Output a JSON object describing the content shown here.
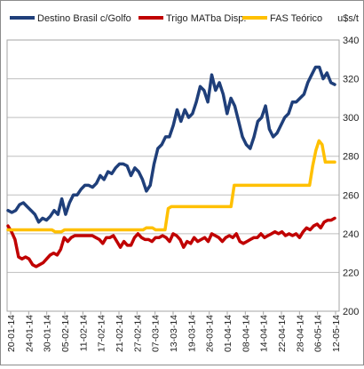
{
  "chart_data": {
    "type": "line",
    "unit_label": "u$s/t",
    "xlabel": "",
    "ylabel": "",
    "ylim": [
      200,
      340
    ],
    "yticks": [
      200,
      220,
      240,
      260,
      280,
      300,
      320,
      340
    ],
    "grid": true,
    "legend_position": "top",
    "x_tick_labels": [
      "20-01-14",
      "24-01-14",
      "30-01-14",
      "05-02-14",
      "11-02-14",
      "17-02-14",
      "21-02-14",
      "27-02-14",
      "07-03-14",
      "13-03-14",
      "19-03-14",
      "26-03-14",
      "01-04-14",
      "08-04-14",
      "14-04-14",
      "22-04-14",
      "28-04-14",
      "06-05-14",
      "12-05-14"
    ],
    "series": [
      {
        "name": "Destino Brasil c/Golfo",
        "color": "#1f3f7a",
        "values": [
          252,
          251,
          252,
          255,
          256,
          254,
          252,
          250,
          246,
          248,
          247,
          249,
          252,
          250,
          258,
          250,
          256,
          260,
          260,
          263,
          265,
          265,
          264,
          266,
          270,
          268,
          272,
          271,
          274,
          276,
          276,
          275,
          270,
          274,
          272,
          268,
          262,
          265,
          276,
          284,
          286,
          290,
          290,
          296,
          304,
          298,
          304,
          300,
          302,
          308,
          316,
          314,
          308,
          322,
          314,
          318,
          312,
          302,
          310,
          306,
          298,
          290,
          286,
          284,
          290,
          298,
          300,
          306,
          294,
          290,
          292,
          296,
          300,
          302,
          308,
          308,
          310,
          312,
          318,
          322,
          326,
          326,
          320,
          323,
          318,
          317
        ]
      },
      {
        "name": "Trigo MATba Disp.",
        "color": "#c00000",
        "values": [
          244,
          241,
          237,
          228,
          227,
          228,
          227,
          224,
          223,
          224,
          225,
          227,
          229,
          230,
          229,
          232,
          238,
          236,
          238,
          239,
          239,
          239,
          239,
          239,
          239,
          238,
          237,
          235,
          238,
          238,
          239,
          236,
          233,
          236,
          234,
          234,
          238,
          240,
          238,
          237,
          237,
          236,
          238,
          238,
          239,
          238,
          236,
          240,
          239,
          237,
          233,
          236,
          235,
          238,
          236,
          237,
          238,
          236,
          240,
          239,
          238,
          236,
          238,
          239,
          238,
          240,
          236,
          235,
          236,
          237,
          238,
          238,
          240,
          238,
          239,
          240,
          241,
          240,
          241,
          239,
          240,
          239,
          240,
          238,
          241,
          243,
          242,
          244,
          245,
          243,
          246,
          247,
          247,
          248
        ]
      },
      {
        "name": "FAS Teórico",
        "color": "#ffc000",
        "values": [
          242,
          242,
          242,
          242,
          242,
          242,
          242,
          242,
          242,
          242,
          242,
          242,
          242,
          242,
          242,
          241,
          241,
          241,
          242,
          242,
          242,
          242,
          242,
          242,
          242,
          242,
          242,
          242,
          242,
          242,
          242,
          242,
          242,
          242,
          242,
          242,
          242,
          242,
          242,
          242,
          242,
          242,
          242,
          242,
          243,
          243,
          243,
          242,
          242,
          242,
          242,
          253,
          254,
          254,
          254,
          254,
          254,
          254,
          254,
          254,
          254,
          254,
          254,
          254,
          254,
          254,
          254,
          254,
          254,
          254,
          254,
          254,
          265,
          265,
          265,
          265,
          265,
          265,
          265,
          265,
          265,
          265,
          265,
          265,
          265,
          265,
          265,
          265,
          265,
          265,
          265,
          265,
          265,
          265,
          265,
          265,
          265,
          275,
          283,
          288,
          286,
          277,
          277,
          277,
          277
        ]
      }
    ]
  }
}
